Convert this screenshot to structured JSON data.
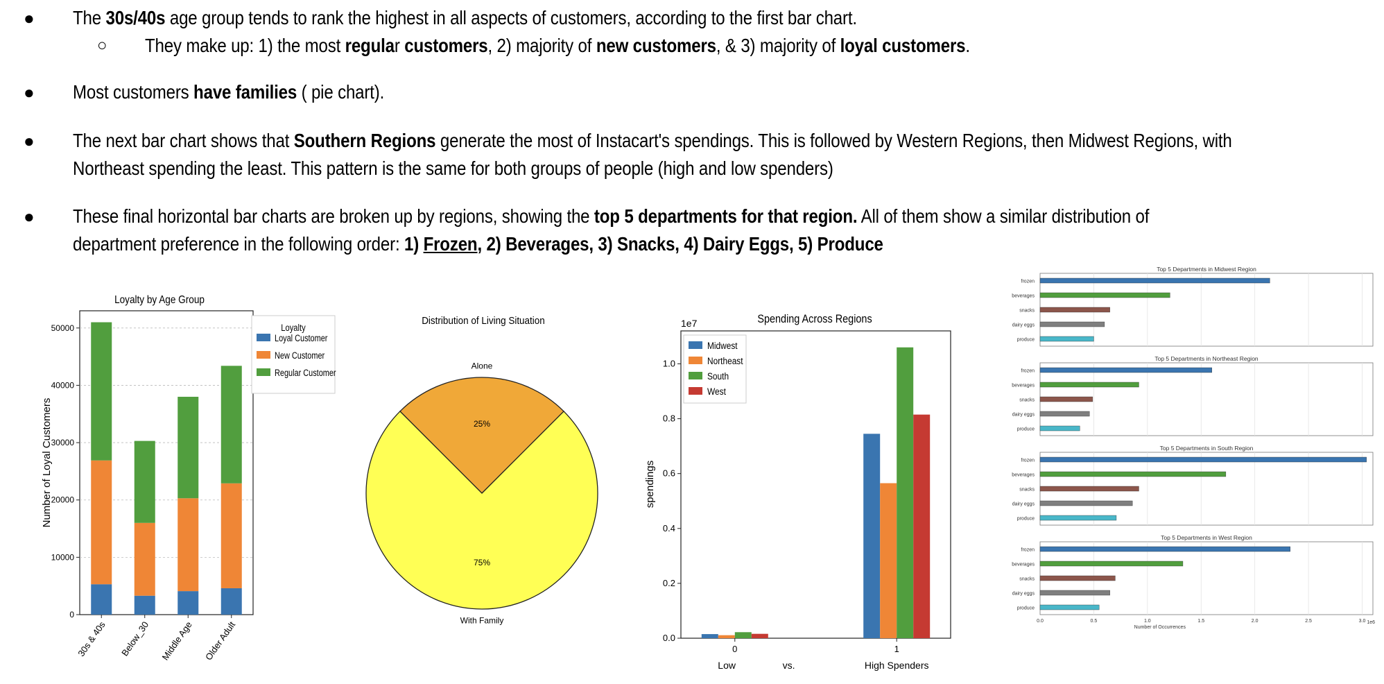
{
  "bullets": {
    "b1": {
      "pre": "The ",
      "bold": "30s/40s",
      "post": " age group tends to rank the highest in all aspects of customers, according to the first bar chart."
    },
    "b1_sub": {
      "t1": "They make up: 1) the most ",
      "bold1": "regula",
      "t2": "r ",
      "bold2": "customers",
      "t3": ", 2) majority of ",
      "bold3": "new customers",
      "t4": ", & 3) majority of ",
      "bold4": "loyal customers",
      "t5": "."
    },
    "b2": {
      "pre": "Most customers ",
      "bold": "have families",
      "post": " ( pie chart)."
    },
    "b3": {
      "pre": "The next bar chart shows that ",
      "bold": "Southern Regions",
      "post": " generate the most of Instacart's spendings.  This is followed by Western Regions, then Midwest Regions, with",
      "line2": "Northeast spending the least.  This pattern is the same for both groups of people (high and low spenders)"
    },
    "b4": {
      "pre": "These final horizontal bar charts are broken up by regions, showing the ",
      "bold": "top 5 departments for that region.",
      "post": "  All of them show a similar distribution of",
      "line2_pre": "department preference in the following order: ",
      "bold_a": "1) ",
      "underline": "Frozen",
      "bold_b": ", 2) Beverages, 3) Snacks, 4) Dairy Eggs, 5) Produce"
    }
  },
  "chart_data": [
    {
      "type": "bar",
      "stacked": true,
      "title": "Loyalty by Age Group",
      "ylabel": "Number of Loyal Customers",
      "xlabel": "",
      "categories": [
        "30s & 40s",
        "Below_30",
        "Middle Age",
        "Older Adult"
      ],
      "ylim": [
        0,
        53000
      ],
      "yticks": [
        0,
        10000,
        20000,
        30000,
        40000,
        50000
      ],
      "legend_title": "Loyalty",
      "legend_position": "outside-right",
      "series": [
        {
          "name": "Loyal Customer",
          "color": "#3a75b0",
          "values": [
            5300,
            3300,
            4100,
            4600
          ]
        },
        {
          "name": "New Customer",
          "color": "#ef8636",
          "values": [
            21600,
            12700,
            16200,
            18300
          ]
        },
        {
          "name": "Regular Customer",
          "color": "#519e3e",
          "values": [
            24100,
            14300,
            17700,
            20500
          ]
        }
      ]
    },
    {
      "type": "pie",
      "title": "Distribution of Living Situation",
      "slices": [
        {
          "label": "Alone",
          "value": 25,
          "pct": "25%",
          "color": "#f0a838"
        },
        {
          "label": "With Family",
          "value": 75,
          "pct": "75%",
          "color": "#ffff55"
        }
      ]
    },
    {
      "type": "bar",
      "title": "Spending Across Regions",
      "ylabel": "spendings",
      "scale_label": "1e7",
      "categories": [
        "0",
        "1"
      ],
      "xlabel_parts": [
        "Low",
        "vs.",
        "High Spenders"
      ],
      "ylim": [
        0,
        1.12
      ],
      "yticks": [
        "0.0",
        "0.2",
        "0.4",
        "0.6",
        "0.8",
        "1.0"
      ],
      "legend_position": "top-left",
      "series": [
        {
          "name": "Midwest",
          "color": "#3a75b0",
          "values": [
            0.015,
            0.745
          ]
        },
        {
          "name": "Northeast",
          "color": "#ef8636",
          "values": [
            0.011,
            0.565
          ]
        },
        {
          "name": "South",
          "color": "#519e3e",
          "values": [
            0.022,
            1.06
          ]
        },
        {
          "name": "West",
          "color": "#c53a32",
          "values": [
            0.016,
            0.815
          ]
        }
      ]
    },
    {
      "type": "bar",
      "orientation": "horizontal",
      "title": "Top 5 Departments in Midwest Region",
      "categories": [
        "frozen",
        "beverages",
        "snacks",
        "dairy eggs",
        "produce"
      ],
      "values": [
        2.14,
        1.21,
        0.65,
        0.6,
        0.5
      ],
      "colors": [
        "#3a75b0",
        "#519e3e",
        "#8c564b",
        "#7f7f7f",
        "#49b7c9"
      ],
      "xlim": [
        0,
        3.1
      ]
    },
    {
      "type": "bar",
      "orientation": "horizontal",
      "title": "Top 5 Departments in Northeast Region",
      "categories": [
        "frozen",
        "beverages",
        "snacks",
        "dairy eggs",
        "produce"
      ],
      "values": [
        1.6,
        0.92,
        0.49,
        0.46,
        0.37
      ],
      "colors": [
        "#3a75b0",
        "#519e3e",
        "#8c564b",
        "#7f7f7f",
        "#49b7c9"
      ],
      "xlim": [
        0,
        3.1
      ]
    },
    {
      "type": "bar",
      "orientation": "horizontal",
      "title": "Top 5 Departments in South Region",
      "categories": [
        "frozen",
        "beverages",
        "snacks",
        "dairy eggs",
        "produce"
      ],
      "values": [
        3.04,
        1.73,
        0.92,
        0.86,
        0.71
      ],
      "colors": [
        "#3a75b0",
        "#519e3e",
        "#8c564b",
        "#7f7f7f",
        "#49b7c9"
      ],
      "xlim": [
        0,
        3.1
      ]
    },
    {
      "type": "bar",
      "orientation": "horizontal",
      "title": "Top 5 Departments in West Region",
      "categories": [
        "frozen",
        "beverages",
        "snacks",
        "dairy eggs",
        "produce"
      ],
      "values": [
        2.33,
        1.33,
        0.7,
        0.65,
        0.55
      ],
      "colors": [
        "#3a75b0",
        "#519e3e",
        "#8c564b",
        "#7f7f7f",
        "#49b7c9"
      ],
      "xlim": [
        0,
        3.1
      ],
      "xticks": [
        "0.0",
        "0.5",
        "1.0",
        "1.5",
        "2.0",
        "2.5",
        "3.0"
      ],
      "xlabel": "Number of Occurrences",
      "scale_label": "1e6"
    }
  ]
}
